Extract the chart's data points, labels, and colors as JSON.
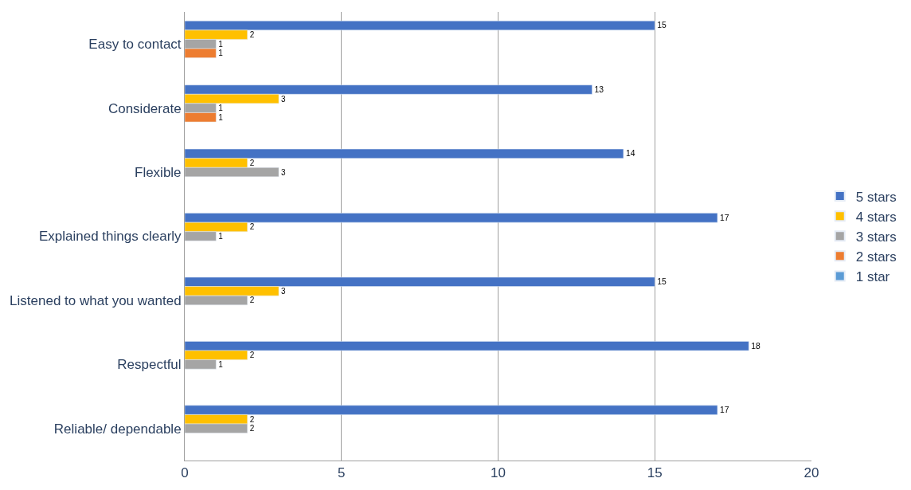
{
  "chart_data": {
    "type": "bar",
    "orientation": "horizontal",
    "categories": [
      "Easy to contact",
      "Considerate",
      "Flexible",
      "Explained things clearly",
      "Listened to what you wanted",
      "Respectful",
      "Reliable/ dependable"
    ],
    "series": [
      {
        "name": "5 stars",
        "color": "#4472c4",
        "values": [
          15,
          13,
          14,
          17,
          15,
          18,
          17
        ]
      },
      {
        "name": "4 stars",
        "color": "#ffc000",
        "values": [
          2,
          3,
          2,
          2,
          3,
          2,
          2
        ]
      },
      {
        "name": "3 stars",
        "color": "#a5a5a5",
        "values": [
          1,
          1,
          3,
          1,
          2,
          1,
          2
        ]
      },
      {
        "name": "2 stars",
        "color": "#ed7d31",
        "values": [
          1,
          1,
          null,
          null,
          null,
          null,
          null
        ]
      },
      {
        "name": "1 star",
        "color": "#5b9bd5",
        "values": [
          null,
          null,
          null,
          null,
          null,
          null,
          null
        ]
      }
    ],
    "xlim": [
      0,
      20
    ],
    "xticks": [
      0,
      5,
      10,
      15,
      20
    ],
    "grid": "x",
    "legend": "right",
    "data_labels": true
  }
}
